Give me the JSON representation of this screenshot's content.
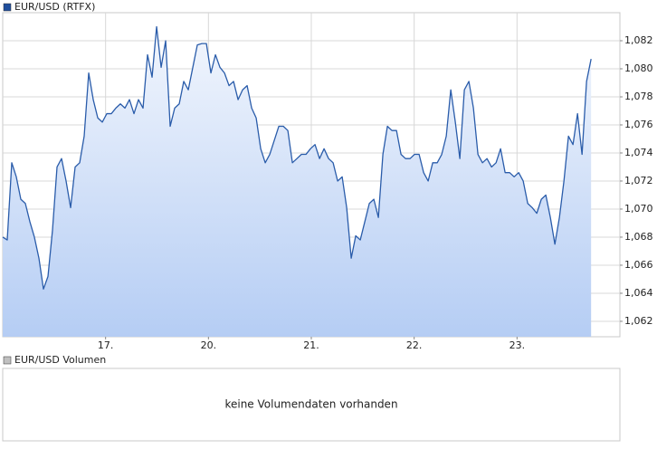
{
  "chart_data": {
    "type": "line",
    "x": [
      0,
      0.044,
      0.088,
      0.132,
      0.176,
      0.22,
      0.264,
      0.308,
      0.352,
      0.396,
      0.44,
      0.484,
      0.528,
      0.572,
      0.616,
      0.66,
      0.704,
      0.748,
      0.792,
      0.836,
      0.88,
      0.924,
      0.968,
      1.012,
      1.056,
      1.1,
      1.144,
      1.188,
      1.232,
      1.276,
      1.32,
      1.364,
      1.408,
      1.452,
      1.496,
      1.54,
      1.584,
      1.628,
      1.672,
      1.716,
      1.76,
      1.804,
      1.848,
      1.892,
      1.936,
      1.98,
      2.024,
      2.068,
      2.112,
      2.156,
      2.2,
      2.244,
      2.288,
      2.332,
      2.376,
      2.42,
      2.464,
      2.508,
      2.552,
      2.596,
      2.64,
      2.684,
      2.728,
      2.772,
      2.816,
      2.86,
      2.904,
      2.948,
      2.992,
      3.036,
      3.08,
      3.124,
      3.168,
      3.212,
      3.256,
      3.3,
      3.344,
      3.388,
      3.432,
      3.476,
      3.52,
      3.564,
      3.608,
      3.652,
      3.696,
      3.74,
      3.784,
      3.828,
      3.872,
      3.916,
      3.96,
      4.004,
      4.048,
      4.092,
      4.136,
      4.18,
      4.224,
      4.268,
      4.312,
      4.356,
      4.4,
      4.444,
      4.488,
      4.532,
      4.576,
      4.62,
      4.664,
      4.708,
      4.752,
      4.796,
      4.84,
      4.884,
      4.928,
      4.972,
      5.016,
      5.06,
      5.104,
      5.148,
      5.192,
      5.236,
      5.28,
      5.324,
      5.368,
      5.412,
      5.456,
      5.5,
      5.544,
      5.588,
      5.632,
      5.676,
      5.72
    ],
    "series": [
      {
        "name": "EUR/USD (RTFX)",
        "color": "#2a5caa",
        "values": [
          1.068,
          1.0678,
          1.0733,
          1.0723,
          1.0707,
          1.0704,
          1.0691,
          1.068,
          1.0665,
          1.0643,
          1.0652,
          1.0685,
          1.073,
          1.0736,
          1.072,
          1.0701,
          1.073,
          1.0733,
          1.0752,
          1.0797,
          1.0778,
          1.0765,
          1.0762,
          1.0768,
          1.0768,
          1.0772,
          1.0775,
          1.0772,
          1.0778,
          1.0768,
          1.0778,
          1.0772,
          1.081,
          1.0794,
          1.083,
          1.0801,
          1.082,
          1.0759,
          1.0772,
          1.0775,
          1.0791,
          1.0785,
          1.0801,
          1.0817,
          1.0818,
          1.0818,
          1.0797,
          1.081,
          1.0801,
          1.0797,
          1.0788,
          1.0791,
          1.0778,
          1.0785,
          1.0788,
          1.0772,
          1.0765,
          1.0743,
          1.0733,
          1.0739,
          1.0749,
          1.0759,
          1.0759,
          1.0756,
          1.0733,
          1.0736,
          1.0739,
          1.0739,
          1.0743,
          1.0746,
          1.0736,
          1.0743,
          1.0736,
          1.0733,
          1.072,
          1.0723,
          1.0701,
          1.0665,
          1.0681,
          1.0678,
          1.0691,
          1.0704,
          1.0707,
          1.0694,
          1.0739,
          1.0759,
          1.0756,
          1.0756,
          1.0739,
          1.0736,
          1.0736,
          1.0739,
          1.0739,
          1.0726,
          1.072,
          1.0733,
          1.0733,
          1.0739,
          1.0752,
          1.0785,
          1.0762,
          1.0736,
          1.0785,
          1.0791,
          1.0772,
          1.0739,
          1.0733,
          1.0736,
          1.073,
          1.0733,
          1.0743,
          1.0726,
          1.0726,
          1.0723,
          1.0726,
          1.072,
          1.0704,
          1.0701,
          1.0697,
          1.0707,
          1.071,
          1.0694,
          1.0675,
          1.0694,
          1.072,
          1.0752,
          1.0746,
          1.0768,
          1.0739,
          1.0791,
          1.0807
        ]
      }
    ],
    "xlim": [
      0,
      6
    ],
    "xticks": [
      {
        "value": 1,
        "label": "17."
      },
      {
        "value": 2,
        "label": "20."
      },
      {
        "value": 3,
        "label": "21."
      },
      {
        "value": 4,
        "label": "22."
      },
      {
        "value": 5,
        "label": "23."
      }
    ],
    "ylim": [
      1.0609,
      1.084
    ],
    "yticks": [
      {
        "value": 1.062,
        "label": "1,062"
      },
      {
        "value": 1.064,
        "label": "1,064"
      },
      {
        "value": 1.066,
        "label": "1,066"
      },
      {
        "value": 1.068,
        "label": "1,068"
      },
      {
        "value": 1.07,
        "label": "1,070"
      },
      {
        "value": 1.072,
        "label": "1,072"
      },
      {
        "value": 1.074,
        "label": "1,074"
      },
      {
        "value": 1.076,
        "label": "1,076"
      },
      {
        "value": 1.078,
        "label": "1,078"
      },
      {
        "value": 1.08,
        "label": "1,080"
      },
      {
        "value": 1.082,
        "label": "1,082"
      }
    ],
    "grid": true
  },
  "volume_panel": {
    "legend": "EUR/USD Volumen",
    "message": "keine Volumendaten vorhanden"
  }
}
